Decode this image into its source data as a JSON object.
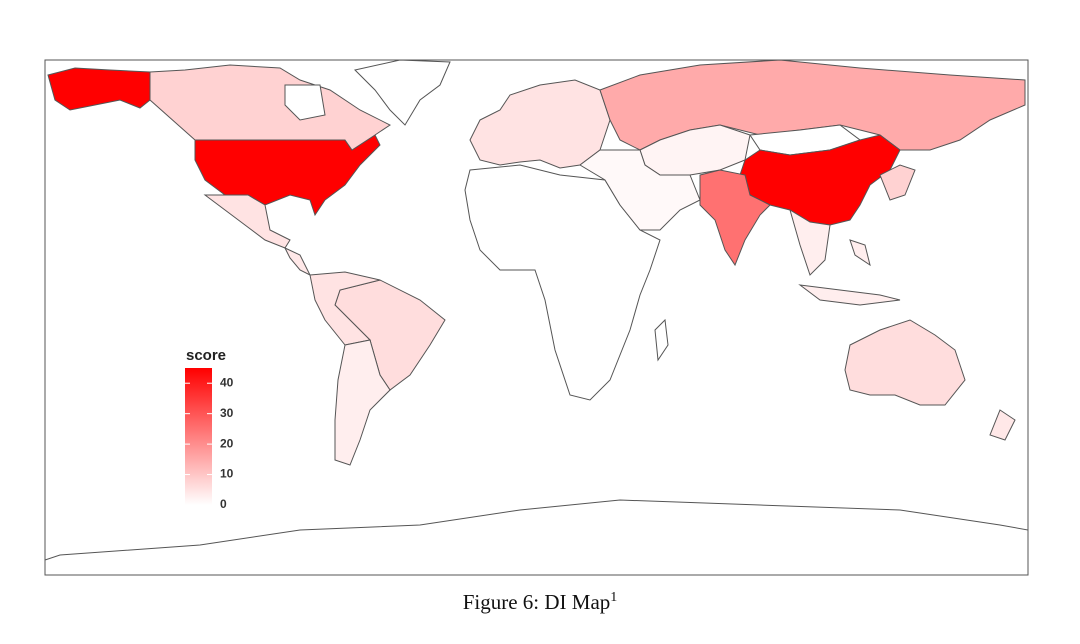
{
  "chart_data": {
    "type": "choropleth",
    "caption": "Figure 6: DI Map",
    "caption_note": "1",
    "legend_title": "score",
    "scale": {
      "lim": [
        0,
        45
      ],
      "ticks": [
        0,
        10,
        20,
        30,
        40
      ],
      "low_color": "#ffffff",
      "high_color": "#ff0000"
    },
    "border_color": "#555555",
    "values": [
      45,
      8,
      0,
      5,
      4,
      6,
      5,
      3,
      0,
      5,
      15,
      2,
      0,
      45,
      1,
      25,
      3,
      3,
      8,
      6,
      4,
      0
    ]
  }
}
